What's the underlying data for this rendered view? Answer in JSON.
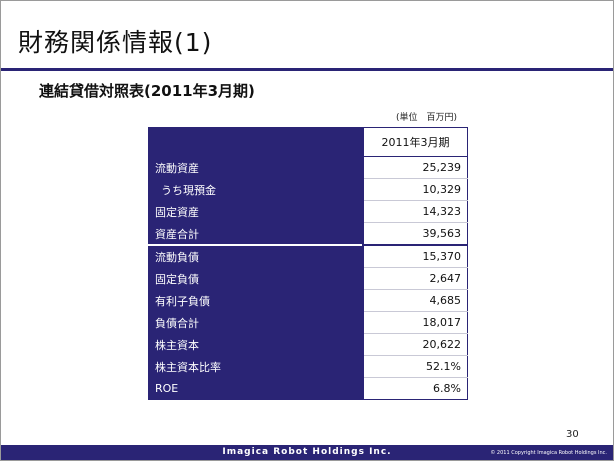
{
  "slide": {
    "title": "財務関係情報(1)",
    "subtitle": "連結貸借対照表(2011年3月期)",
    "unit": "(単位　百万円)",
    "page_number": "30"
  },
  "table": {
    "column_header": "2011年3月期",
    "rows": [
      {
        "label": "流動資産",
        "value": "25,239"
      },
      {
        "label": "うち現預金",
        "value": "10,329"
      },
      {
        "label": "固定資産",
        "value": "14,323"
      },
      {
        "label": "資産合計",
        "value": "39,563"
      },
      {
        "label": "流動負債",
        "value": "15,370"
      },
      {
        "label": "固定負債",
        "value": "2,647"
      },
      {
        "label": "有利子負債",
        "value": "4,685"
      },
      {
        "label": "負債合計",
        "value": "18,017"
      },
      {
        "label": "株主資本",
        "value": "20,622"
      },
      {
        "label": "株主資本比率",
        "value": "52.1%"
      },
      {
        "label": "ROE",
        "value": "6.8%"
      }
    ]
  },
  "footer": {
    "company": "Imagica Robot Holdings Inc.",
    "copyright": "© 2011 Copyright Imagica Robot Holdings Inc."
  },
  "colors": {
    "brand": "#2a2475"
  }
}
